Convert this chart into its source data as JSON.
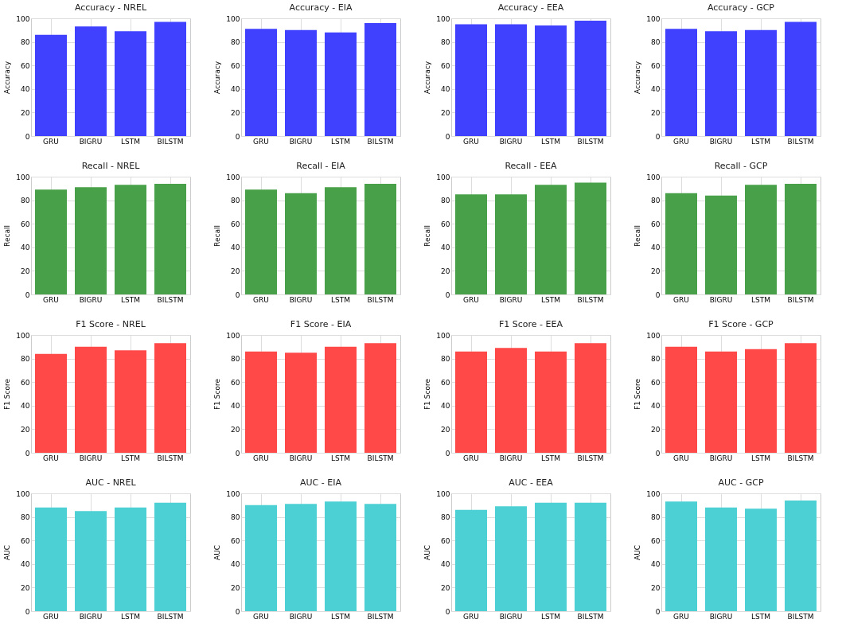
{
  "chart_data": [
    {
      "type": "bar",
      "title": "Accuracy - NREL",
      "ylabel": "Accuracy",
      "categories": [
        "GRU",
        "BIGRU",
        "LSTM",
        "BILSTM"
      ],
      "values": [
        86,
        93,
        89,
        97
      ],
      "color": "#4040ff",
      "ylim": [
        0,
        100
      ],
      "yticks": [
        0,
        20,
        40,
        60,
        80,
        100
      ],
      "grid": true
    },
    {
      "type": "bar",
      "title": "Accuracy - EIA",
      "ylabel": "Accuracy",
      "categories": [
        "GRU",
        "BIGRU",
        "LSTM",
        "BILSTM"
      ],
      "values": [
        91,
        90,
        88,
        96
      ],
      "color": "#4040ff",
      "ylim": [
        0,
        100
      ],
      "yticks": [
        0,
        20,
        40,
        60,
        80,
        100
      ],
      "grid": true
    },
    {
      "type": "bar",
      "title": "Accuracy - EEA",
      "ylabel": "Accuracy",
      "categories": [
        "GRU",
        "BIGRU",
        "LSTM",
        "BILSTM"
      ],
      "values": [
        95,
        95,
        94,
        98
      ],
      "color": "#4040ff",
      "ylim": [
        0,
        100
      ],
      "yticks": [
        0,
        20,
        40,
        60,
        80,
        100
      ],
      "grid": true
    },
    {
      "type": "bar",
      "title": "Accuracy - GCP",
      "ylabel": "Accuracy",
      "categories": [
        "GRU",
        "BIGRU",
        "LSTM",
        "BILSTM"
      ],
      "values": [
        91,
        89,
        90,
        97
      ],
      "color": "#4040ff",
      "ylim": [
        0,
        100
      ],
      "yticks": [
        0,
        20,
        40,
        60,
        80,
        100
      ],
      "grid": true
    },
    {
      "type": "bar",
      "title": "Recall - NREL",
      "ylabel": "Recall",
      "categories": [
        "GRU",
        "BIGRU",
        "LSTM",
        "BILSTM"
      ],
      "values": [
        89,
        91,
        93,
        94
      ],
      "color": "#48a048",
      "ylim": [
        0,
        100
      ],
      "yticks": [
        0,
        20,
        40,
        60,
        80,
        100
      ],
      "grid": true
    },
    {
      "type": "bar",
      "title": "Recall - EIA",
      "ylabel": "Recall",
      "categories": [
        "GRU",
        "BIGRU",
        "LSTM",
        "BILSTM"
      ],
      "values": [
        89,
        86,
        91,
        94
      ],
      "color": "#48a048",
      "ylim": [
        0,
        100
      ],
      "yticks": [
        0,
        20,
        40,
        60,
        80,
        100
      ],
      "grid": true
    },
    {
      "type": "bar",
      "title": "Recall - EEA",
      "ylabel": "Recall",
      "categories": [
        "GRU",
        "BIGRU",
        "LSTM",
        "BILSTM"
      ],
      "values": [
        85,
        85,
        93,
        95
      ],
      "color": "#48a048",
      "ylim": [
        0,
        100
      ],
      "yticks": [
        0,
        20,
        40,
        60,
        80,
        100
      ],
      "grid": true
    },
    {
      "type": "bar",
      "title": "Recall - GCP",
      "ylabel": "Recall",
      "categories": [
        "GRU",
        "BIGRU",
        "LSTM",
        "BILSTM"
      ],
      "values": [
        86,
        84,
        93,
        94
      ],
      "color": "#48a048",
      "ylim": [
        0,
        100
      ],
      "yticks": [
        0,
        20,
        40,
        60,
        80,
        100
      ],
      "grid": true
    },
    {
      "type": "bar",
      "title": "F1 Score - NREL",
      "ylabel": "F1 Score",
      "categories": [
        "GRU",
        "BIGRU",
        "LSTM",
        "BILSTM"
      ],
      "values": [
        84,
        90,
        87,
        93
      ],
      "color": "#ff4848",
      "ylim": [
        0,
        100
      ],
      "yticks": [
        0,
        20,
        40,
        60,
        80,
        100
      ],
      "grid": true
    },
    {
      "type": "bar",
      "title": "F1 Score - EIA",
      "ylabel": "F1 Score",
      "categories": [
        "GRU",
        "BIGRU",
        "LSTM",
        "BILSTM"
      ],
      "values": [
        86,
        85,
        90,
        93
      ],
      "color": "#ff4848",
      "ylim": [
        0,
        100
      ],
      "yticks": [
        0,
        20,
        40,
        60,
        80,
        100
      ],
      "grid": true
    },
    {
      "type": "bar",
      "title": "F1 Score - EEA",
      "ylabel": "F1 Score",
      "categories": [
        "GRU",
        "BIGRU",
        "LSTM",
        "BILSTM"
      ],
      "values": [
        86,
        89,
        86,
        93
      ],
      "color": "#ff4848",
      "ylim": [
        0,
        100
      ],
      "yticks": [
        0,
        20,
        40,
        60,
        80,
        100
      ],
      "grid": true
    },
    {
      "type": "bar",
      "title": "F1 Score - GCP",
      "ylabel": "F1 Score",
      "categories": [
        "GRU",
        "BIGRU",
        "LSTM",
        "BILSTM"
      ],
      "values": [
        90,
        86,
        88,
        93
      ],
      "color": "#ff4848",
      "ylim": [
        0,
        100
      ],
      "yticks": [
        0,
        20,
        40,
        60,
        80,
        100
      ],
      "grid": true
    },
    {
      "type": "bar",
      "title": "AUC - NREL",
      "ylabel": "AUC",
      "categories": [
        "GRU",
        "BIGRU",
        "LSTM",
        "BILSTM"
      ],
      "values": [
        88,
        85,
        88,
        92
      ],
      "color": "#4dd0d4",
      "ylim": [
        0,
        100
      ],
      "yticks": [
        0,
        20,
        40,
        60,
        80,
        100
      ],
      "grid": true
    },
    {
      "type": "bar",
      "title": "AUC - EIA",
      "ylabel": "AUC",
      "categories": [
        "GRU",
        "BIGRU",
        "LSTM",
        "BILSTM"
      ],
      "values": [
        90,
        91,
        93,
        91
      ],
      "color": "#4dd0d4",
      "ylim": [
        0,
        100
      ],
      "yticks": [
        0,
        20,
        40,
        60,
        80,
        100
      ],
      "grid": true
    },
    {
      "type": "bar",
      "title": "AUC - EEA",
      "ylabel": "AUC",
      "categories": [
        "GRU",
        "BIGRU",
        "LSTM",
        "BILSTM"
      ],
      "values": [
        86,
        89,
        92,
        92
      ],
      "color": "#4dd0d4",
      "ylim": [
        0,
        100
      ],
      "yticks": [
        0,
        20,
        40,
        60,
        80,
        100
      ],
      "grid": true
    },
    {
      "type": "bar",
      "title": "AUC - GCP",
      "ylabel": "AUC",
      "categories": [
        "GRU",
        "BIGRU",
        "LSTM",
        "BILSTM"
      ],
      "values": [
        93,
        88,
        87,
        94
      ],
      "color": "#4dd0d4",
      "ylim": [
        0,
        100
      ],
      "yticks": [
        0,
        20,
        40,
        60,
        80,
        100
      ],
      "grid": true
    }
  ]
}
